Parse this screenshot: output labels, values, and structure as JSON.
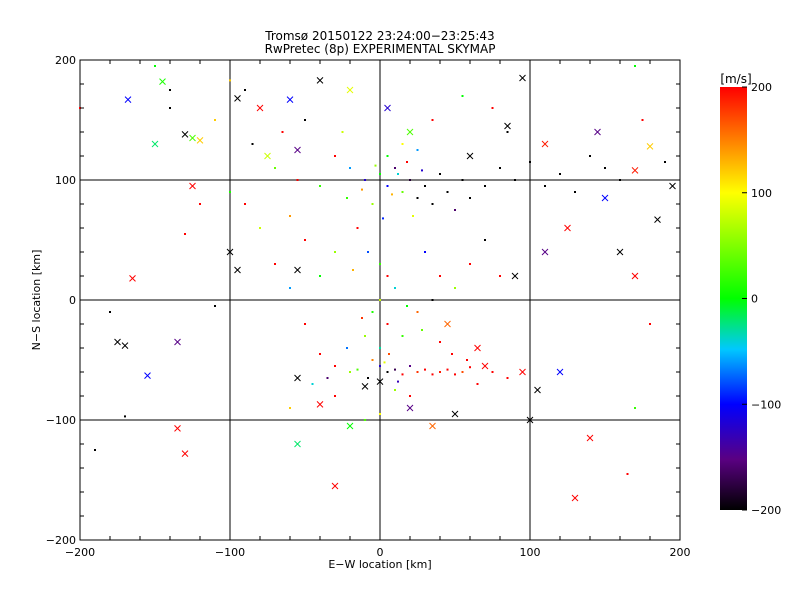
{
  "chart_data": {
    "type": "scatter",
    "title": "Tromsø 20150122 23:24:00−23:25:43",
    "subtitle": "RwPretec (8p) EXPERIMENTAL SKYMAP",
    "xlabel": "E−W location [km]",
    "ylabel": "N−S location [km]",
    "xlim": [
      -200,
      200
    ],
    "ylim": [
      -200,
      200
    ],
    "xticks": [
      -200,
      -100,
      0,
      100,
      200
    ],
    "yticks": [
      -200,
      -100,
      0,
      100,
      200
    ],
    "xtick_labels": [
      "−200",
      "−100",
      "0",
      "100",
      "200"
    ],
    "ytick_labels": [
      "−200",
      "−100",
      "0",
      "100",
      "200"
    ],
    "grid": true,
    "colorbar": {
      "label": "[m/s]",
      "min": -200,
      "max": 200,
      "ticks": [
        200,
        100,
        0,
        -100,
        -200
      ],
      "tick_labels": [
        "200",
        "100",
        "0",
        "−100",
        "−200"
      ],
      "colormap": [
        "#000000",
        "#5a0082",
        "#0000ff",
        "#00c8ff",
        "#00ff00",
        "#ffff00",
        "#ff0000"
      ]
    },
    "series": [
      {
        "marker": "x",
        "points": [
          [
            -168,
            167,
            -100
          ],
          [
            -150,
            130,
            -20
          ],
          [
            -145,
            182,
            10
          ],
          [
            -130,
            138,
            -200
          ],
          [
            -125,
            135,
            30
          ],
          [
            -120,
            133,
            120
          ],
          [
            -125,
            95,
            200
          ],
          [
            -95,
            168,
            -200
          ],
          [
            -80,
            160,
            200
          ],
          [
            -75,
            120,
            80
          ],
          [
            -60,
            167,
            -100
          ],
          [
            -55,
            125,
            -150
          ],
          [
            -40,
            183,
            -200
          ],
          [
            -20,
            175,
            90
          ],
          [
            5,
            160,
            -120
          ],
          [
            20,
            140,
            30
          ],
          [
            60,
            120,
            -200
          ],
          [
            85,
            145,
            -200
          ],
          [
            95,
            185,
            -200
          ],
          [
            110,
            130,
            190
          ],
          [
            145,
            140,
            -150
          ],
          [
            170,
            108,
            190
          ],
          [
            180,
            128,
            120
          ],
          [
            195,
            95,
            -200
          ],
          [
            185,
            67,
            -200
          ],
          [
            150,
            85,
            -100
          ],
          [
            125,
            60,
            200
          ],
          [
            110,
            40,
            -150
          ],
          [
            160,
            40,
            -200
          ],
          [
            170,
            20,
            200
          ],
          [
            90,
            20,
            -200
          ],
          [
            -100,
            40,
            -200
          ],
          [
            -95,
            25,
            -200
          ],
          [
            -55,
            25,
            -200
          ],
          [
            -165,
            18,
            200
          ],
          [
            -175,
            -35,
            -200
          ],
          [
            -170,
            -38,
            -200
          ],
          [
            -155,
            -63,
            -100
          ],
          [
            -135,
            -35,
            -150
          ],
          [
            -55,
            -65,
            -200
          ],
          [
            -40,
            -87,
            200
          ],
          [
            -20,
            -105,
            0
          ],
          [
            -10,
            -72,
            -200
          ],
          [
            0,
            -68,
            -200
          ],
          [
            20,
            -90,
            -150
          ],
          [
            35,
            -105,
            160
          ],
          [
            50,
            -95,
            -200
          ],
          [
            70,
            -55,
            200
          ],
          [
            95,
            -60,
            200
          ],
          [
            105,
            -75,
            -200
          ],
          [
            120,
            -60,
            -100
          ],
          [
            140,
            -115,
            200
          ],
          [
            -135,
            -107,
            200
          ],
          [
            -130,
            -128,
            200
          ],
          [
            -55,
            -120,
            -20
          ],
          [
            -30,
            -155,
            200
          ],
          [
            130,
            -165,
            200
          ],
          [
            100,
            -100,
            -200
          ],
          [
            65,
            -40,
            200
          ],
          [
            45,
            -20,
            160
          ]
        ]
      },
      {
        "marker": "dot",
        "points": [
          [
            -150,
            195,
            0
          ],
          [
            -140,
            175,
            -200
          ],
          [
            -140,
            160,
            -200
          ],
          [
            -100,
            183,
            120
          ],
          [
            -90,
            175,
            -200
          ],
          [
            -110,
            150,
            120
          ],
          [
            -85,
            130,
            -200
          ],
          [
            -70,
            110,
            40
          ],
          [
            -65,
            140,
            200
          ],
          [
            -50,
            150,
            -200
          ],
          [
            -30,
            120,
            200
          ],
          [
            -20,
            110,
            -60
          ],
          [
            -10,
            100,
            -120
          ],
          [
            0,
            105,
            0
          ],
          [
            5,
            95,
            -100
          ],
          [
            10,
            110,
            -160
          ],
          [
            15,
            90,
            40
          ],
          [
            20,
            100,
            -180
          ],
          [
            25,
            85,
            -200
          ],
          [
            30,
            95,
            -200
          ],
          [
            35,
            80,
            -200
          ],
          [
            40,
            105,
            -200
          ],
          [
            45,
            90,
            -200
          ],
          [
            50,
            75,
            -160
          ],
          [
            55,
            100,
            -200
          ],
          [
            60,
            85,
            -200
          ],
          [
            70,
            95,
            -200
          ],
          [
            80,
            110,
            -200
          ],
          [
            90,
            100,
            -200
          ],
          [
            100,
            115,
            -200
          ],
          [
            110,
            95,
            -200
          ],
          [
            120,
            105,
            -200
          ],
          [
            130,
            90,
            -200
          ],
          [
            140,
            120,
            -200
          ],
          [
            150,
            110,
            -200
          ],
          [
            160,
            100,
            -200
          ],
          [
            -5,
            80,
            60
          ],
          [
            -15,
            60,
            200
          ],
          [
            -8,
            40,
            -80
          ],
          [
            0,
            30,
            20
          ],
          [
            5,
            20,
            200
          ],
          [
            10,
            10,
            -40
          ],
          [
            0,
            0,
            80
          ],
          [
            -5,
            -10,
            10
          ],
          [
            5,
            -20,
            200
          ],
          [
            -10,
            -30,
            60
          ],
          [
            0,
            -40,
            -30
          ],
          [
            -5,
            -50,
            150
          ],
          [
            0,
            -55,
            -120
          ],
          [
            5,
            -60,
            -200
          ],
          [
            10,
            -58,
            -170
          ],
          [
            15,
            -62,
            200
          ],
          [
            20,
            -55,
            -150
          ],
          [
            25,
            -60,
            180
          ],
          [
            30,
            -58,
            200
          ],
          [
            35,
            -62,
            200
          ],
          [
            40,
            -60,
            190
          ],
          [
            45,
            -58,
            200
          ],
          [
            50,
            -62,
            200
          ],
          [
            55,
            -60,
            170
          ],
          [
            60,
            -56,
            200
          ],
          [
            -20,
            -60,
            60
          ],
          [
            -30,
            -55,
            200
          ],
          [
            -15,
            -58,
            30
          ],
          [
            -40,
            -45,
            200
          ],
          [
            -45,
            -70,
            -40
          ],
          [
            -60,
            -90,
            120
          ],
          [
            -30,
            -80,
            200
          ],
          [
            10,
            -75,
            60
          ],
          [
            20,
            -80,
            200
          ],
          [
            0,
            -95,
            100
          ],
          [
            -10,
            -100,
            30
          ],
          [
            -50,
            -20,
            200
          ],
          [
            -60,
            10,
            -60
          ],
          [
            -70,
            30,
            200
          ],
          [
            -80,
            60,
            80
          ],
          [
            -90,
            80,
            200
          ],
          [
            -100,
            90,
            10
          ],
          [
            -60,
            70,
            140
          ],
          [
            -50,
            50,
            200
          ],
          [
            -30,
            40,
            60
          ],
          [
            -40,
            20,
            0
          ],
          [
            30,
            40,
            -100
          ],
          [
            40,
            20,
            200
          ],
          [
            50,
            10,
            60
          ],
          [
            60,
            30,
            200
          ],
          [
            70,
            50,
            -200
          ],
          [
            80,
            20,
            200
          ],
          [
            35,
            0,
            -200
          ],
          [
            25,
            -10,
            160
          ],
          [
            15,
            -30,
            20
          ],
          [
            40,
            -35,
            200
          ],
          [
            -180,
            -10,
            -200
          ],
          [
            -190,
            -125,
            -200
          ],
          [
            -200,
            160,
            200
          ],
          [
            170,
            195,
            0
          ],
          [
            175,
            150,
            200
          ],
          [
            190,
            115,
            -200
          ],
          [
            180,
            -20,
            200
          ],
          [
            170,
            -90,
            20
          ],
          [
            165,
            -145,
            200
          ],
          [
            -170,
            -97,
            -200
          ],
          [
            -110,
            -5,
            -200
          ],
          [
            -120,
            80,
            200
          ],
          [
            -130,
            55,
            200
          ],
          [
            85,
            140,
            -200
          ],
          [
            75,
            160,
            200
          ],
          [
            55,
            170,
            0
          ],
          [
            35,
            150,
            200
          ],
          [
            25,
            125,
            -60
          ],
          [
            15,
            130,
            100
          ],
          [
            -25,
            140,
            80
          ],
          [
            -40,
            95,
            20
          ],
          [
            -55,
            100,
            200
          ],
          [
            5,
            120,
            0
          ],
          [
            12,
            105,
            -40
          ],
          [
            -3,
            112,
            60
          ],
          [
            8,
            88,
            130
          ],
          [
            18,
            115,
            200
          ],
          [
            28,
            108,
            -120
          ],
          [
            -12,
            92,
            140
          ],
          [
            -22,
            85,
            20
          ],
          [
            2,
            68,
            -90
          ],
          [
            22,
            70,
            90
          ],
          [
            -18,
            25,
            130
          ],
          [
            18,
            -5,
            0
          ],
          [
            -12,
            -15,
            180
          ],
          [
            28,
            -25,
            40
          ],
          [
            -22,
            -40,
            -70
          ],
          [
            6,
            -45,
            170
          ],
          [
            48,
            -45,
            200
          ],
          [
            58,
            -50,
            200
          ],
          [
            65,
            -70,
            200
          ],
          [
            75,
            -60,
            200
          ],
          [
            85,
            -65,
            200
          ],
          [
            -35,
            -65,
            -160
          ],
          [
            -8,
            -65,
            -200
          ],
          [
            12,
            -68,
            -130
          ],
          [
            3,
            -52,
            90
          ]
        ]
      }
    ]
  }
}
